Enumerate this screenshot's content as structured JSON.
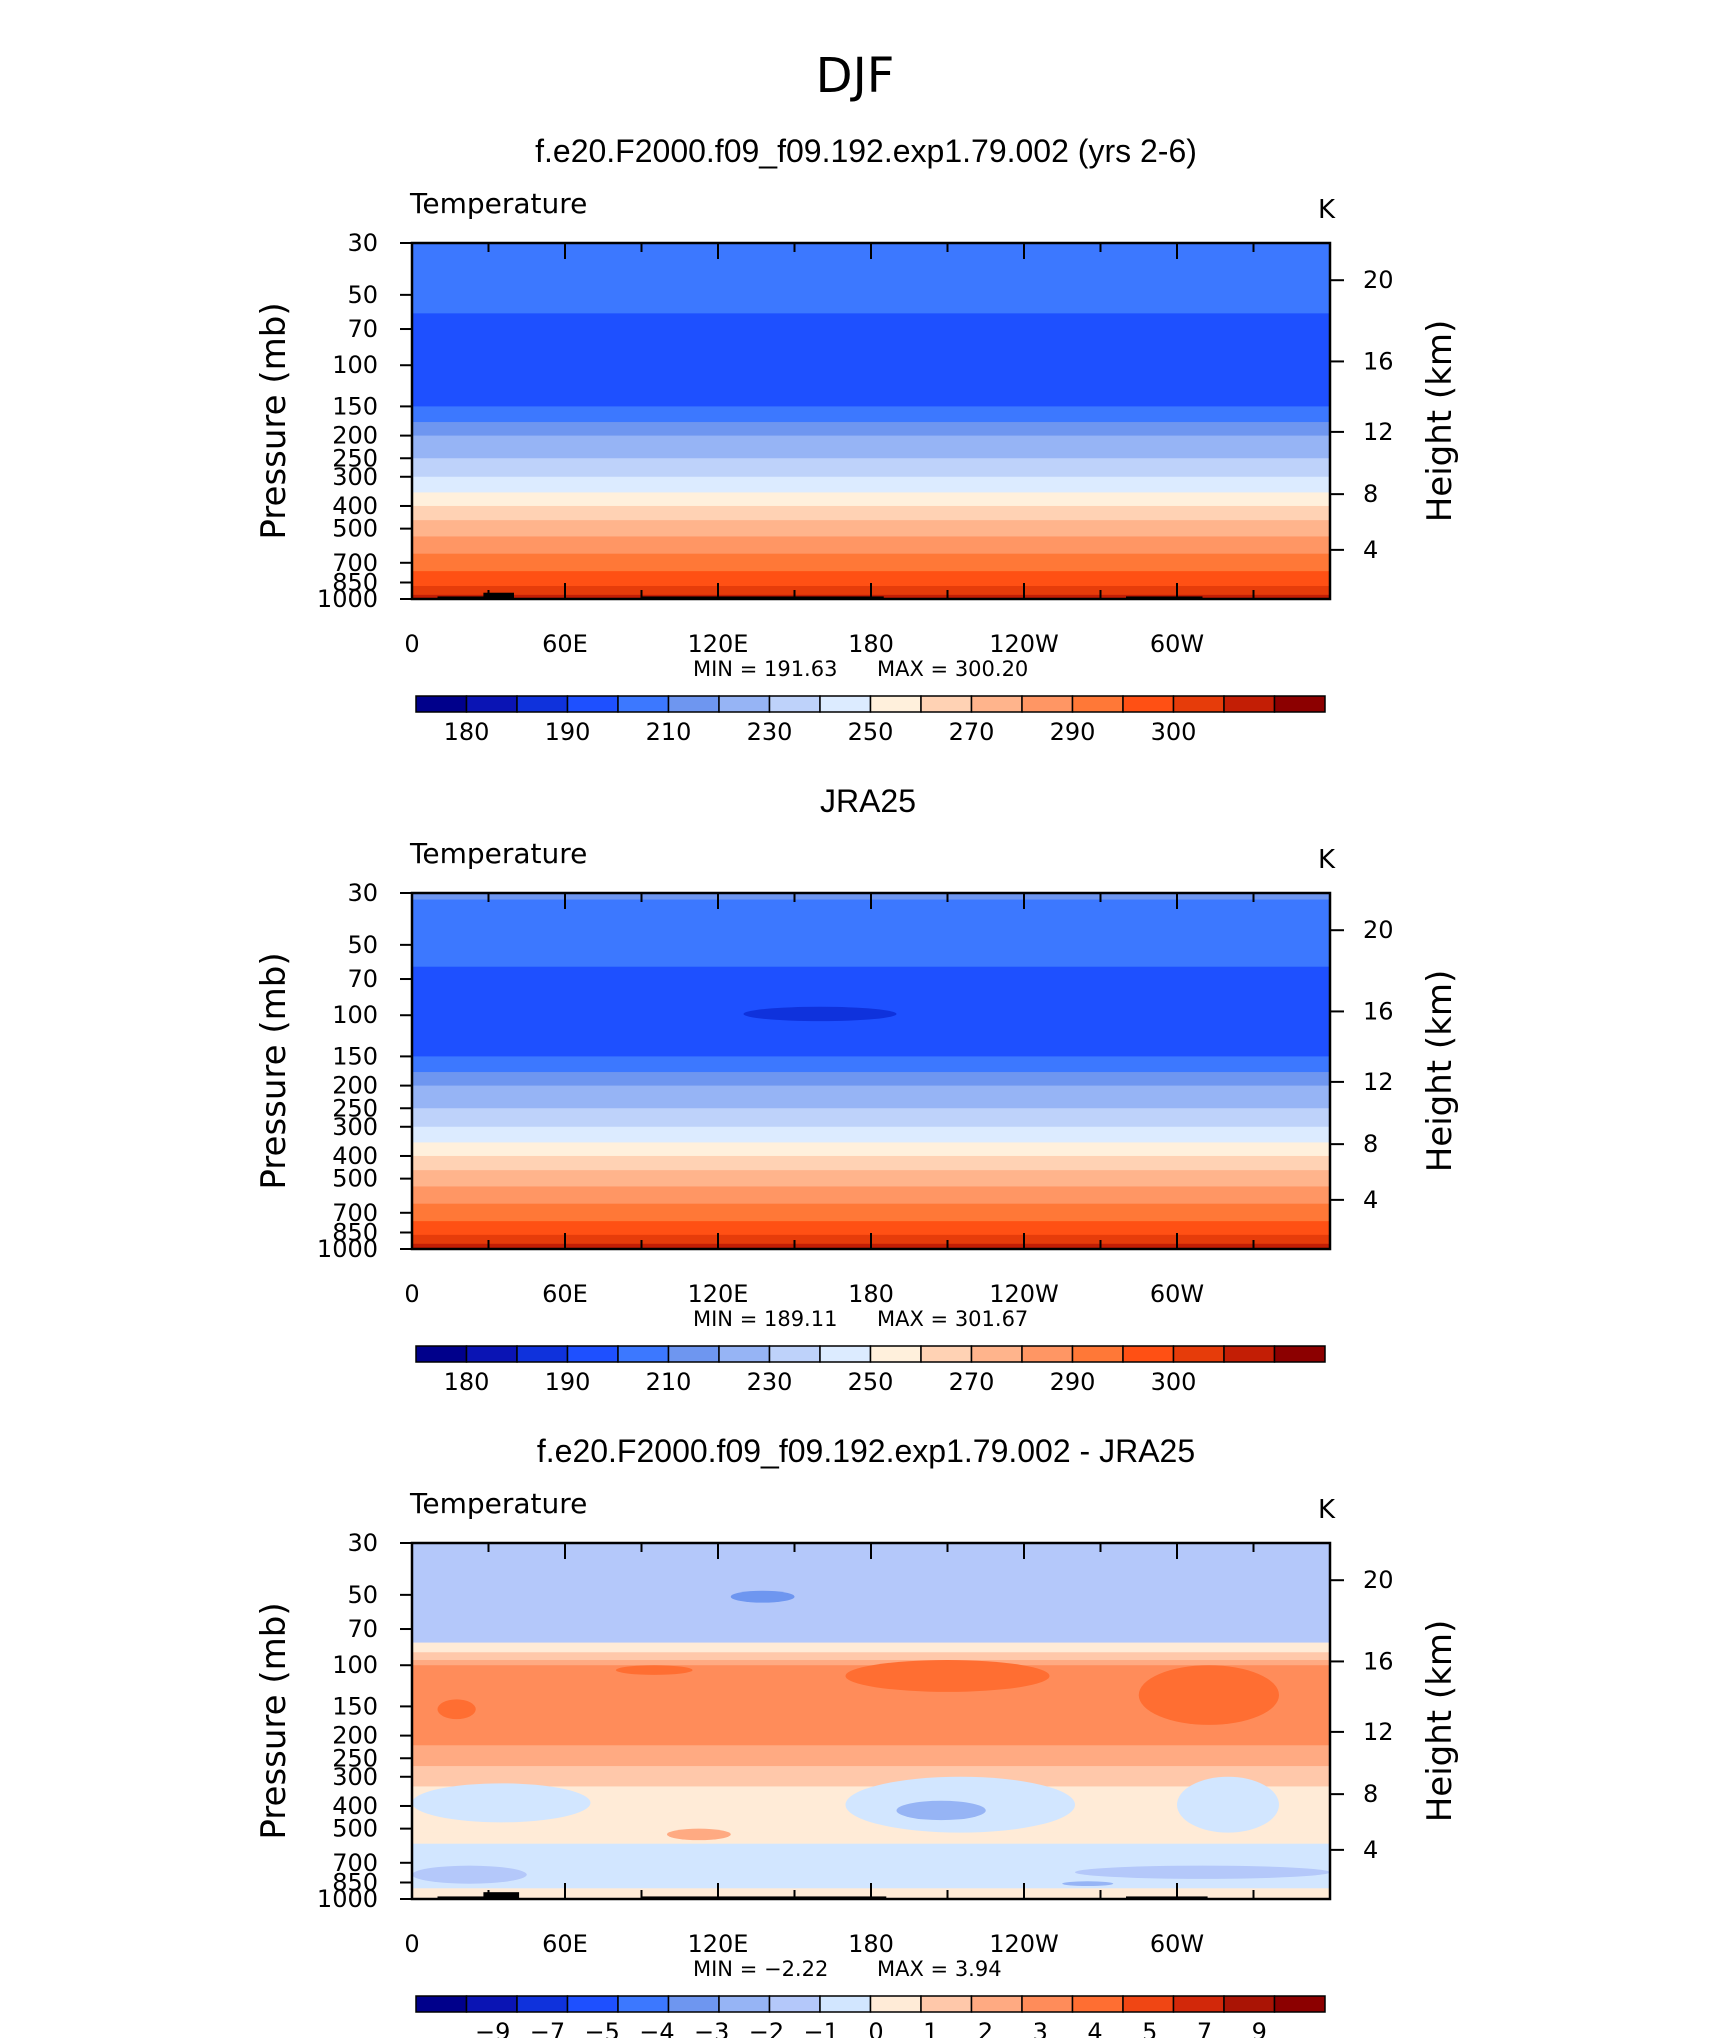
{
  "figure_title": "DJF",
  "colors": {
    "temperature_scale": [
      "#00008b",
      "#0a14b4",
      "#0f32dc",
      "#1e50ff",
      "#3c78ff",
      "#6e96f0",
      "#96b4f5",
      "#bed2fa",
      "#dcebff",
      "#fff0dc",
      "#ffd2b4",
      "#ffb48c",
      "#ff9664",
      "#ff7837",
      "#ff5014",
      "#e63c0a",
      "#c31e05",
      "#8c0000"
    ],
    "difference_scale": [
      "#00008b",
      "#0a14b4",
      "#0f32dc",
      "#1e50ff",
      "#3c78ff",
      "#6e96f0",
      "#96b4f5",
      "#b4c8fa",
      "#d2e6ff",
      "#ffebd7",
      "#ffc8aa",
      "#ffaa82",
      "#ff8c5a",
      "#ff6e32",
      "#f04614",
      "#d2280a",
      "#aa1405",
      "#8c0000"
    ],
    "topography": "#000000"
  },
  "chart_data": [
    {
      "id": "model",
      "type": "heatmap",
      "title": "f.e20.F2000.f09_f09.192.exp1.79.002 (yrs 2-6)",
      "left_label": "Temperature",
      "right_label": "K",
      "xlabel": "",
      "ylabel": "Pressure (mb)",
      "ylabel_right": "Height (km)",
      "x_ticks": [
        "0",
        "60E",
        "120E",
        "180",
        "120W",
        "60W"
      ],
      "x_range": [
        0,
        360
      ],
      "y_ticks": [
        "30",
        "50",
        "70",
        "100",
        "150",
        "200",
        "250",
        "300",
        "400",
        "500",
        "700",
        "850",
        "1000"
      ],
      "y_range_mb": [
        1000,
        30
      ],
      "height_ticks": [
        "20",
        "16",
        "12",
        "8",
        "4"
      ],
      "min_label": "MIN  =  191.63",
      "max_label": "MAX  =  300.20",
      "min": 191.63,
      "max": 300.2,
      "colorbar_labels": [
        "180",
        "190",
        "210",
        "230",
        "250",
        "270",
        "290",
        "300"
      ],
      "mean_profile": [
        {
          "p": 30,
          "band": 4
        },
        {
          "p": 35,
          "band": 4
        },
        {
          "p": 45,
          "band": 4
        },
        {
          "p": 60,
          "band": 3
        },
        {
          "p": 120,
          "band": 3
        },
        {
          "p": 150,
          "band": 4
        },
        {
          "p": 175,
          "band": 5
        },
        {
          "p": 200,
          "band": 6
        },
        {
          "p": 250,
          "band": 7
        },
        {
          "p": 300,
          "band": 8
        },
        {
          "p": 350,
          "band": 9
        },
        {
          "p": 400,
          "band": 10
        },
        {
          "p": 460,
          "band": 11
        },
        {
          "p": 540,
          "band": 12
        },
        {
          "p": 640,
          "band": 13
        },
        {
          "p": 760,
          "band": 14
        },
        {
          "p": 880,
          "band": 15
        },
        {
          "p": 960,
          "band": 16
        },
        {
          "p": 1000,
          "band": 16
        }
      ],
      "topography": [
        {
          "lon": [
            10,
            30
          ],
          "p": 975
        },
        {
          "lon": [
            28,
            40
          ],
          "p": 940
        },
        {
          "lon": [
            90,
            185
          ],
          "p": 975
        },
        {
          "lon": [
            280,
            310
          ],
          "p": 975
        }
      ]
    },
    {
      "id": "obs",
      "type": "heatmap",
      "title": "JRA25",
      "left_label": "Temperature",
      "right_label": "K",
      "xlabel": "",
      "ylabel": "Pressure (mb)",
      "ylabel_right": "Height (km)",
      "x_ticks": [
        "0",
        "60E",
        "120E",
        "180",
        "120W",
        "60W"
      ],
      "x_range": [
        0,
        360
      ],
      "y_ticks": [
        "30",
        "50",
        "70",
        "100",
        "150",
        "200",
        "250",
        "300",
        "400",
        "500",
        "700",
        "850",
        "1000"
      ],
      "y_range_mb": [
        1000,
        30
      ],
      "height_ticks": [
        "20",
        "16",
        "12",
        "8",
        "4"
      ],
      "min_label": "MIN  =  189.11",
      "max_label": "MAX  =  301.67",
      "min": 189.11,
      "max": 301.67,
      "colorbar_labels": [
        "180",
        "190",
        "210",
        "230",
        "250",
        "270",
        "290",
        "300"
      ],
      "mean_profile": [
        {
          "p": 30,
          "band": 5
        },
        {
          "p": 32,
          "band": 4
        },
        {
          "p": 48,
          "band": 4
        },
        {
          "p": 62,
          "band": 3
        },
        {
          "p": 125,
          "band": 3
        },
        {
          "p": 150,
          "band": 4
        },
        {
          "p": 175,
          "band": 5
        },
        {
          "p": 200,
          "band": 6
        },
        {
          "p": 250,
          "band": 7
        },
        {
          "p": 300,
          "band": 8
        },
        {
          "p": 350,
          "band": 9
        },
        {
          "p": 400,
          "band": 10
        },
        {
          "p": 460,
          "band": 11
        },
        {
          "p": 540,
          "band": 12
        },
        {
          "p": 640,
          "band": 13
        },
        {
          "p": 760,
          "band": 14
        },
        {
          "p": 870,
          "band": 15
        },
        {
          "p": 950,
          "band": 16
        },
        {
          "p": 1000,
          "band": 17
        }
      ],
      "features": [
        {
          "lon": [
            130,
            190
          ],
          "p": [
            92,
            106
          ],
          "band": 2
        }
      ],
      "topography": []
    },
    {
      "id": "difference",
      "type": "heatmap",
      "title": "f.e20.F2000.f09_f09.192.exp1.79.002 - JRA25",
      "left_label": "Temperature",
      "right_label": "K",
      "xlabel": "",
      "ylabel": "Pressure (mb)",
      "ylabel_right": "Height (km)",
      "x_ticks": [
        "0",
        "60E",
        "120E",
        "180",
        "120W",
        "60W"
      ],
      "x_range": [
        0,
        360
      ],
      "y_ticks": [
        "30",
        "50",
        "70",
        "100",
        "150",
        "200",
        "250",
        "300",
        "400",
        "500",
        "700",
        "850",
        "1000"
      ],
      "y_range_mb": [
        1000,
        30
      ],
      "height_ticks": [
        "20",
        "16",
        "12",
        "8",
        "4"
      ],
      "min_label": "MIN  =    −2.22",
      "max_label": "MAX  =      3.94",
      "min": -2.22,
      "max": 3.94,
      "colorbar_labels": [
        "−9",
        "−7",
        "−5",
        "−4",
        "−3",
        "−2",
        "−1",
        "0",
        "1",
        "2",
        "3",
        "4",
        "5",
        "7",
        "9"
      ],
      "mean_profile": [
        {
          "p": 30,
          "band": 7
        },
        {
          "p": 75,
          "band": 7
        },
        {
          "p": 80,
          "band": 9
        },
        {
          "p": 88,
          "band": 10
        },
        {
          "p": 95,
          "band": 11
        },
        {
          "p": 100,
          "band": 12
        },
        {
          "p": 200,
          "band": 12
        },
        {
          "p": 220,
          "band": 11
        },
        {
          "p": 270,
          "band": 10
        },
        {
          "p": 330,
          "band": 9
        },
        {
          "p": 520,
          "band": 9
        },
        {
          "p": 580,
          "band": 8
        },
        {
          "p": 880,
          "band": 8
        },
        {
          "p": 900,
          "band": 9
        },
        {
          "p": 1000,
          "band": 9
        }
      ],
      "features": [
        {
          "lon": [
            125,
            150
          ],
          "p": [
            48,
            54
          ],
          "band": 5
        },
        {
          "lon": [
            170,
            250
          ],
          "p": [
            95,
            130
          ],
          "band": 13
        },
        {
          "lon": [
            285,
            340
          ],
          "p": [
            100,
            180
          ],
          "band": 13
        },
        {
          "lon": [
            10,
            25
          ],
          "p": [
            140,
            170
          ],
          "band": 13
        },
        {
          "lon": [
            80,
            110
          ],
          "p": [
            100,
            110
          ],
          "band": 13
        },
        {
          "lon": [
            170,
            260
          ],
          "p": [
            300,
            520
          ],
          "band": 8
        },
        {
          "lon": [
            190,
            225
          ],
          "p": [
            380,
            460
          ],
          "band": 6
        },
        {
          "lon": [
            0,
            70
          ],
          "p": [
            320,
            470
          ],
          "band": 8
        },
        {
          "lon": [
            300,
            340
          ],
          "p": [
            300,
            520
          ],
          "band": 8
        },
        {
          "lon": [
            100,
            125
          ],
          "p": [
            500,
            560
          ],
          "band": 11
        },
        {
          "lon": [
            0,
            45
          ],
          "p": [
            720,
            860
          ],
          "band": 7
        },
        {
          "lon": [
            260,
            360
          ],
          "p": [
            720,
            820
          ],
          "band": 7
        },
        {
          "lon": [
            255,
            275
          ],
          "p": [
            840,
            880
          ],
          "band": 6
        }
      ],
      "topography": [
        {
          "lon": [
            10,
            30
          ],
          "p": 975
        },
        {
          "lon": [
            28,
            42
          ],
          "p": 935
        },
        {
          "lon": [
            90,
            186
          ],
          "p": 975
        },
        {
          "lon": [
            280,
            312
          ],
          "p": 975
        }
      ]
    }
  ]
}
